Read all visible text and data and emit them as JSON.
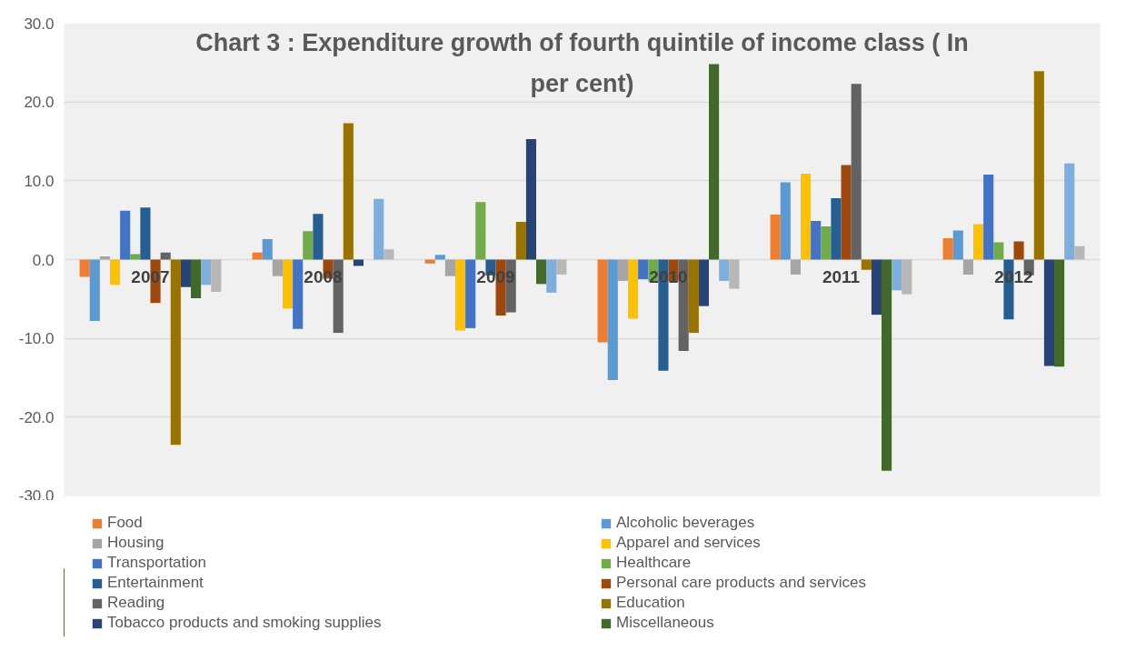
{
  "chart_data": {
    "type": "bar",
    "title": "Chart 3 : Expenditure growth of fourth quintile of income class ( In per cent)",
    "categories": [
      "2007",
      "2008",
      "2009",
      "2010",
      "2011",
      "2012"
    ],
    "series": [
      {
        "name": "Food",
        "color": "#ed7d31",
        "values": [
          -2.2,
          0.9,
          -0.5,
          -10.5,
          5.7,
          2.7
        ]
      },
      {
        "name": "Alcoholic beverages",
        "color": "#5b9bd5",
        "values": [
          -7.8,
          2.6,
          0.6,
          -15.3,
          9.8,
          3.7
        ]
      },
      {
        "name": "Housing",
        "color": "#a5a5a5",
        "values": [
          0.4,
          -2.1,
          -2.1,
          -2.7,
          -1.9,
          -1.9
        ]
      },
      {
        "name": "Apparel and services",
        "color": "#ffc000",
        "values": [
          -3.2,
          -6.2,
          -9.0,
          -7.5,
          10.9,
          4.5
        ]
      },
      {
        "name": "Transportation",
        "color": "#4472c4",
        "values": [
          6.2,
          -8.8,
          -8.7,
          -2.5,
          4.9,
          10.8
        ]
      },
      {
        "name": "Healthcare",
        "color": "#70ad47",
        "values": [
          0.7,
          3.6,
          7.3,
          -2.8,
          4.2,
          2.2
        ]
      },
      {
        "name": "Entertainment",
        "color": "#255e91",
        "values": [
          6.6,
          5.8,
          -2.0,
          -14.1,
          7.8,
          -7.6
        ]
      },
      {
        "name": "Personal care products and services",
        "color": "#9e480e",
        "values": [
          -5.5,
          -2.4,
          -7.1,
          -2.8,
          12.0,
          2.3
        ]
      },
      {
        "name": "Reading",
        "color": "#636363",
        "values": [
          0.9,
          -9.3,
          -6.7,
          -11.6,
          22.3,
          -2.0
        ]
      },
      {
        "name": "Education",
        "color": "#997300",
        "values": [
          -23.5,
          17.3,
          4.8,
          -9.3,
          -1.3,
          23.9
        ]
      },
      {
        "name": "Tobacco products and smoking supplies",
        "color": "#264478",
        "values": [
          -3.5,
          -0.8,
          15.3,
          -5.9,
          -7.0,
          -13.5
        ]
      },
      {
        "name": "Miscellaneous",
        "color": "#43682b",
        "values": [
          -4.9,
          0,
          -3.1,
          24.8,
          -26.8,
          -13.6
        ]
      },
      {
        "color": "#7cafdd",
        "values": [
          -3.2,
          7.7,
          -4.2,
          -2.7,
          -3.9,
          12.2
        ]
      },
      {
        "color": "#b7b7b7",
        "values": [
          -4.1,
          1.3,
          -1.9,
          -3.7,
          -4.4,
          1.7
        ]
      }
    ],
    "ylim": [
      -30,
      30
    ],
    "yticks": [
      {
        "value": -30,
        "label": "-30.0"
      },
      {
        "value": -20,
        "label": "-20.0"
      },
      {
        "value": -10,
        "label": "-10.0"
      },
      {
        "value": 0,
        "label": "0.0"
      },
      {
        "value": 10,
        "label": "10.0"
      },
      {
        "value": 20,
        "label": "20.0"
      },
      {
        "value": 30,
        "label": "30.0"
      }
    ],
    "grid": "y",
    "legend": "bottom"
  }
}
